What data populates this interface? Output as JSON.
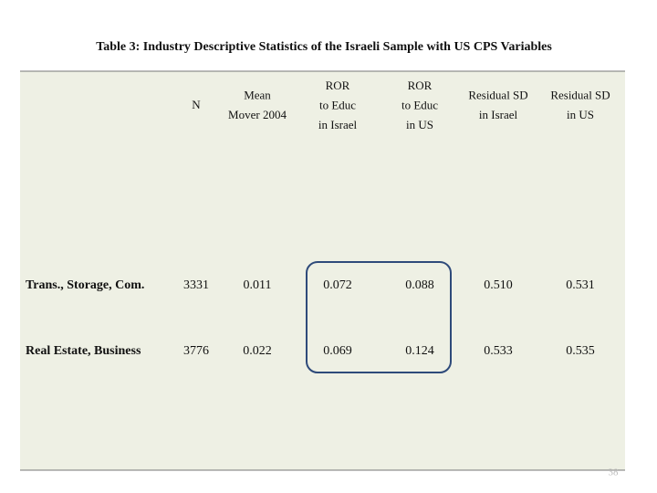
{
  "title": "Table 3: Industry Descriptive Statistics of the Israeli Sample with US CPS Variables",
  "table": {
    "columns": [
      [
        "N"
      ],
      [
        "Mean",
        "Mover 2004"
      ],
      [
        "ROR",
        "to Educ",
        "in Israel"
      ],
      [
        "ROR",
        "to Educ",
        "in US"
      ],
      [
        "Residual SD",
        "in  Israel"
      ],
      [
        "Residual SD",
        "in US"
      ]
    ],
    "rows": [
      [
        "Trans., Storage, Com.",
        "3331",
        "0.011",
        "0.072",
        "0.088",
        "0.510",
        "0.531"
      ],
      [
        "Real Estate, Business",
        "3776",
        "0.022",
        "0.069",
        "0.124",
        "0.533",
        "0.535"
      ]
    ]
  },
  "page_number": "38"
}
